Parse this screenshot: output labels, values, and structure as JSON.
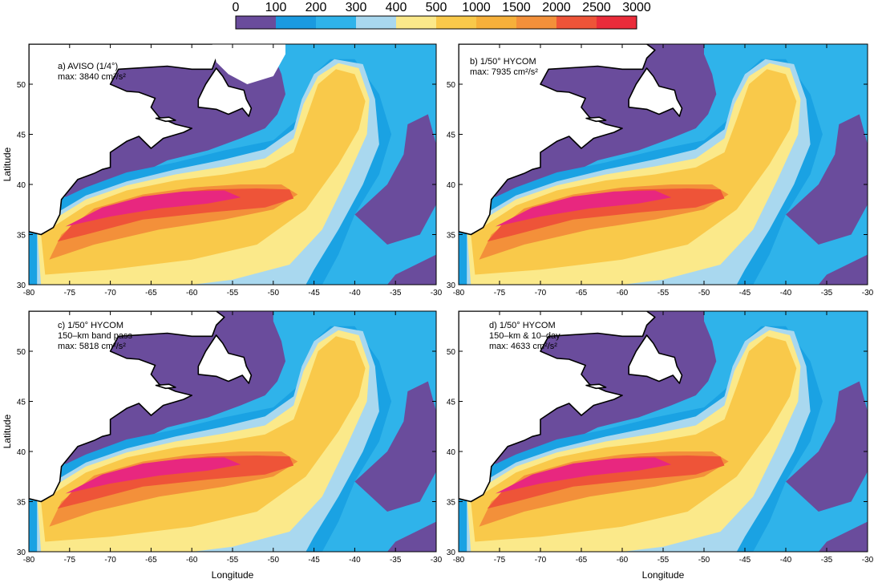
{
  "figure": {
    "colorbar": {
      "labels": [
        "0",
        "100",
        "200",
        "300",
        "400",
        "500",
        "1000",
        "1500",
        "2000",
        "2500",
        "3000"
      ],
      "colors": [
        "#6a4c9c",
        "#1a9ae0",
        "#2fb3ea",
        "#a9d8ef",
        "#fbe98a",
        "#f9c94a",
        "#f6b03a",
        "#f3903a",
        "#ee5438",
        "#ea2c3a",
        "#e8277f"
      ]
    },
    "x_axis": {
      "title": "Longitude",
      "ticks": [
        "-80",
        "-75",
        "-70",
        "-65",
        "-60",
        "-55",
        "-50",
        "-45",
        "-40",
        "-35",
        "-30"
      ]
    },
    "y_axis": {
      "title": "Latitude",
      "ticks": [
        "30",
        "35",
        "40",
        "45",
        "50"
      ]
    },
    "panels": [
      {
        "lines": [
          "a) AVISO (1/4°)",
          "max: 3840 cm²/s²"
        ],
        "max_value": 3840
      },
      {
        "lines": [
          "b) 1/50° HYCOM",
          "max: 7935 cm²/s²"
        ],
        "max_value": 7935
      },
      {
        "lines": [
          "c) 1/50° HYCOM",
          "150–km band pass",
          "max: 5818 cm²/s²"
        ],
        "max_value": 5818
      },
      {
        "lines": [
          "d) 1/50° HYCOM",
          "150–km & 10–day",
          "max: 4633 cm²/s²"
        ],
        "max_value": 4633
      }
    ]
  }
}
